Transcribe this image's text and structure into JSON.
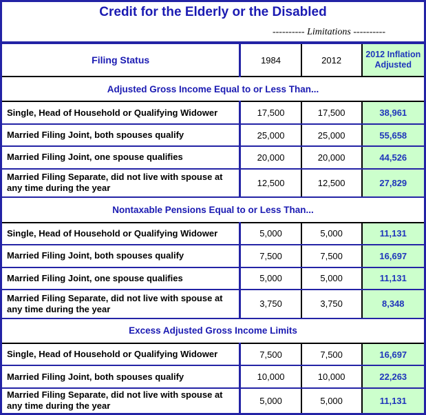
{
  "title": "Credit for the Elderly or the Disabled",
  "limitations_label": "---------- Limitations ----------",
  "colors": {
    "border_blue": "#2323a5",
    "heading_blue": "#1a1ab2",
    "value_blue": "#1f35bb",
    "inflation_bg_green": "#ccffcc",
    "divider_black": "#000000"
  },
  "header": {
    "filing_status": "Filing Status",
    "col_1984": "1984",
    "col_2012": "2012",
    "col_inflation": "2012 Inflation Adjusted"
  },
  "sections": [
    {
      "title": "Adjusted Gross Income Equal to or Less Than...",
      "rows": [
        {
          "label": "Single, Head of Household or Qualifying Widower",
          "v1984": "17,500",
          "v2012": "17,500",
          "adjusted": "38,961"
        },
        {
          "label": "Married Filing Joint, both spouses qualify",
          "v1984": "25,000",
          "v2012": "25,000",
          "adjusted": "55,658"
        },
        {
          "label": "Married Filing Joint, one spouse qualifies",
          "v1984": "20,000",
          "v2012": "20,000",
          "adjusted": "44,526"
        },
        {
          "label": "Married Filing Separate, did not live with spouse at any time during the year",
          "v1984": "12,500",
          "v2012": "12,500",
          "adjusted": "27,829"
        }
      ]
    },
    {
      "title": "Nontaxable Pensions Equal to or Less Than...",
      "rows": [
        {
          "label": "Single, Head of Household or Qualifying Widower",
          "v1984": "5,000",
          "v2012": "5,000",
          "adjusted": "11,131"
        },
        {
          "label": "Married Filing Joint, both spouses qualify",
          "v1984": "7,500",
          "v2012": "7,500",
          "adjusted": "16,697"
        },
        {
          "label": "Married Filing Joint, one spouse qualifies",
          "v1984": "5,000",
          "v2012": "5,000",
          "adjusted": "11,131"
        },
        {
          "label": "Married Filing Separate, did not live with spouse at any time during the year",
          "v1984": "3,750",
          "v2012": "3,750",
          "adjusted": "8,348"
        }
      ]
    },
    {
      "title": "Excess Adjusted Gross Income Limits",
      "rows": [
        {
          "label": "Single, Head of Household or Qualifying Widower",
          "v1984": "7,500",
          "v2012": "7,500",
          "adjusted": "16,697"
        },
        {
          "label": "Married Filing Joint, both spouses qualify",
          "v1984": "10,000",
          "v2012": "10,000",
          "adjusted": "22,263"
        },
        {
          "label": "Married Filing Separate, did not live with spouse at any time during the year",
          "v1984": "5,000",
          "v2012": "5,000",
          "adjusted": "11,131"
        }
      ]
    }
  ]
}
